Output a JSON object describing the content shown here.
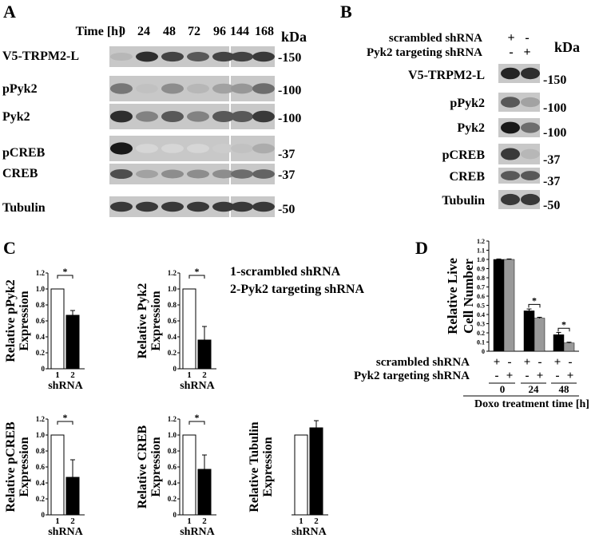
{
  "panelA": {
    "letter": "A",
    "time_label": "Time [h]",
    "time_points": [
      "0",
      "24",
      "48",
      "72",
      "96",
      "144",
      "168"
    ],
    "kda_label": "kDa",
    "rows": [
      {
        "label": "V5-TRPM2-L",
        "kda": "-150"
      },
      {
        "label": "pPyk2",
        "kda": "-100"
      },
      {
        "label": "Pyk2",
        "kda": "-100"
      },
      {
        "label": "pCREB",
        "kda": "-37"
      },
      {
        "label": "CREB",
        "kda": "-37"
      },
      {
        "label": "Tubulin",
        "kda": "-50"
      }
    ],
    "band_intensity": [
      [
        0.25,
        0.9,
        0.8,
        0.7,
        0.8,
        0.8,
        0.85
      ],
      [
        0.55,
        0.2,
        0.45,
        0.25,
        0.35,
        0.4,
        0.6
      ],
      [
        0.9,
        0.5,
        0.7,
        0.5,
        0.7,
        0.7,
        0.85
      ],
      [
        1.0,
        0.1,
        0.1,
        0.1,
        0.15,
        0.2,
        0.3
      ],
      [
        0.75,
        0.35,
        0.45,
        0.45,
        0.45,
        0.6,
        0.65
      ],
      [
        0.85,
        0.85,
        0.85,
        0.85,
        0.85,
        0.85,
        0.85
      ]
    ]
  },
  "panelB": {
    "letter": "B",
    "cond1": "scrambled shRNA",
    "cond2": "Pyk2 targeting shRNA",
    "cond1_signs": [
      "+",
      "-"
    ],
    "cond2_signs": [
      "-",
      "+"
    ],
    "kda_label": "kDa",
    "rows": [
      {
        "label": "V5-TRPM2-L",
        "kda": "-150"
      },
      {
        "label": "pPyk2",
        "kda": "-100"
      },
      {
        "label": "Pyk2",
        "kda": "-100"
      },
      {
        "label": "pCREB",
        "kda": "-37"
      },
      {
        "label": "CREB",
        "kda": "-37"
      },
      {
        "label": "Tubulin",
        "kda": "-50"
      }
    ],
    "band_intensity": [
      [
        0.95,
        0.9
      ],
      [
        0.7,
        0.35
      ],
      [
        1.0,
        0.6
      ],
      [
        0.85,
        0.25
      ],
      [
        0.7,
        0.7
      ],
      [
        0.85,
        0.85
      ]
    ]
  },
  "panelC": {
    "letter": "C",
    "legend1": "1-scrambled shRNA",
    "legend2": "2-Pyk2 targeting shRNA",
    "xlabel": "shRNA",
    "categories": [
      "1",
      "2"
    ],
    "ticks": [
      "0",
      "0.2",
      "0.4",
      "0.6",
      "0.8",
      "1.0",
      "1.2"
    ],
    "star": "*",
    "charts": [
      {
        "ylabel1": "Relative pPyk2",
        "ylabel2": "Expression",
        "values": [
          1.0,
          0.67
        ],
        "errors": [
          0,
          0.06
        ],
        "sig": true
      },
      {
        "ylabel1": "Relative Pyk2",
        "ylabel2": "Expression",
        "values": [
          1.0,
          0.36
        ],
        "errors": [
          0,
          0.17
        ],
        "sig": true
      },
      {
        "ylabel1": "Relative pCREB",
        "ylabel2": "Expression",
        "values": [
          1.0,
          0.47
        ],
        "errors": [
          0,
          0.22
        ],
        "sig": true
      },
      {
        "ylabel1": "Relative CREB",
        "ylabel2": "Expression",
        "values": [
          1.0,
          0.57
        ],
        "errors": [
          0,
          0.18
        ],
        "sig": true
      },
      {
        "ylabel1": "Relative Tubulin",
        "ylabel2": "Expression",
        "values": [
          1.0,
          1.09
        ],
        "errors": [
          0,
          0.09
        ],
        "sig": false
      }
    ]
  },
  "panelD": {
    "letter": "D",
    "ylabel1": "Relative Live",
    "ylabel2": "Cell Number",
    "ticks": [
      "0",
      "0.1",
      "0.2",
      "0.3",
      "0.4",
      "0.5",
      "0.6",
      "0.7",
      "0.8",
      "0.9",
      "1.0",
      "1.1",
      "1.2"
    ],
    "cond1": "scrambled shRNA",
    "cond2": "Pyk2 targeting shRNA",
    "signs1": [
      "+",
      "-",
      "+",
      "-",
      "+",
      "-"
    ],
    "signs2": [
      "-",
      "+",
      "-",
      "+",
      "-",
      "+"
    ],
    "times": [
      "0",
      "24",
      "48"
    ],
    "xlabel": "Doxo treatment time [h]",
    "star": "*",
    "series": [
      {
        "name": "scrambled shRNA",
        "values": [
          1.0,
          0.44,
          0.18
        ],
        "errors": [
          0.005,
          0.02,
          0.025
        ],
        "color": "#000000"
      },
      {
        "name": "Pyk2 targeting shRNA",
        "values": [
          1.0,
          0.36,
          0.09
        ],
        "errors": [
          0.005,
          0.01,
          0.008
        ],
        "color": "#999999"
      }
    ]
  },
  "chart_data": [
    {
      "type": "bar",
      "title": "",
      "categories": [
        "1",
        "2"
      ],
      "values": [
        1.0,
        0.67
      ],
      "xlabel": "shRNA",
      "ylabel": "Relative pPyk2 Expression",
      "ylim": [
        0,
        1.2
      ]
    },
    {
      "type": "bar",
      "title": "",
      "categories": [
        "1",
        "2"
      ],
      "values": [
        1.0,
        0.36
      ],
      "xlabel": "shRNA",
      "ylabel": "Relative Pyk2 Expression",
      "ylim": [
        0,
        1.2
      ]
    },
    {
      "type": "bar",
      "title": "",
      "categories": [
        "1",
        "2"
      ],
      "values": [
        1.0,
        0.47
      ],
      "xlabel": "shRNA",
      "ylabel": "Relative pCREB Expression",
      "ylim": [
        0,
        1.2
      ]
    },
    {
      "type": "bar",
      "title": "",
      "categories": [
        "1",
        "2"
      ],
      "values": [
        1.0,
        0.57
      ],
      "xlabel": "shRNA",
      "ylabel": "Relative CREB Expression",
      "ylim": [
        0,
        1.2
      ]
    },
    {
      "type": "bar",
      "title": "",
      "categories": [
        "1",
        "2"
      ],
      "values": [
        1.0,
        1.09
      ],
      "xlabel": "shRNA",
      "ylabel": "Relative Tubulin Expression",
      "ylim": [
        0,
        1.2
      ]
    },
    {
      "type": "bar",
      "title": "",
      "categories": [
        "0",
        "24",
        "48"
      ],
      "series": [
        {
          "name": "scrambled shRNA",
          "values": [
            1.0,
            0.44,
            0.18
          ]
        },
        {
          "name": "Pyk2 targeting shRNA",
          "values": [
            1.0,
            0.36,
            0.09
          ]
        }
      ],
      "xlabel": "Doxo treatment time [h]",
      "ylabel": "Relative Live Cell Number",
      "ylim": [
        0,
        1.2
      ]
    }
  ]
}
